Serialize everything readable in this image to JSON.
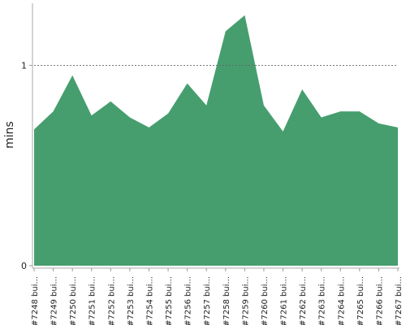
{
  "chart_data": {
    "type": "area",
    "y_label": "mins",
    "categories": [
      "#7248 bui...",
      "#7249 bui...",
      "#7250 bui...",
      "#7251 bui...",
      "#7252 bui...",
      "#7253 bui...",
      "#7254 bui...",
      "#7255 bui...",
      "#7256 bui...",
      "#7257 bui...",
      "#7258 bui...",
      "#7259 bui...",
      "#7260 bui...",
      "#7261 bui...",
      "#7262 bui...",
      "#7263 bui...",
      "#7264 bui...",
      "#7265 bui...",
      "#7266 bui...",
      "#7267 bui..."
    ],
    "values": [
      0.68,
      0.77,
      0.95,
      0.75,
      0.82,
      0.74,
      0.69,
      0.76,
      0.91,
      0.8,
      1.17,
      1.25,
      0.8,
      0.67,
      0.88,
      0.74,
      0.77,
      0.77,
      0.71,
      0.69
    ],
    "color": "#469e6e",
    "ylim": [
      0,
      1.31
    ],
    "yticks": [
      0,
      1
    ],
    "grid": true
  }
}
